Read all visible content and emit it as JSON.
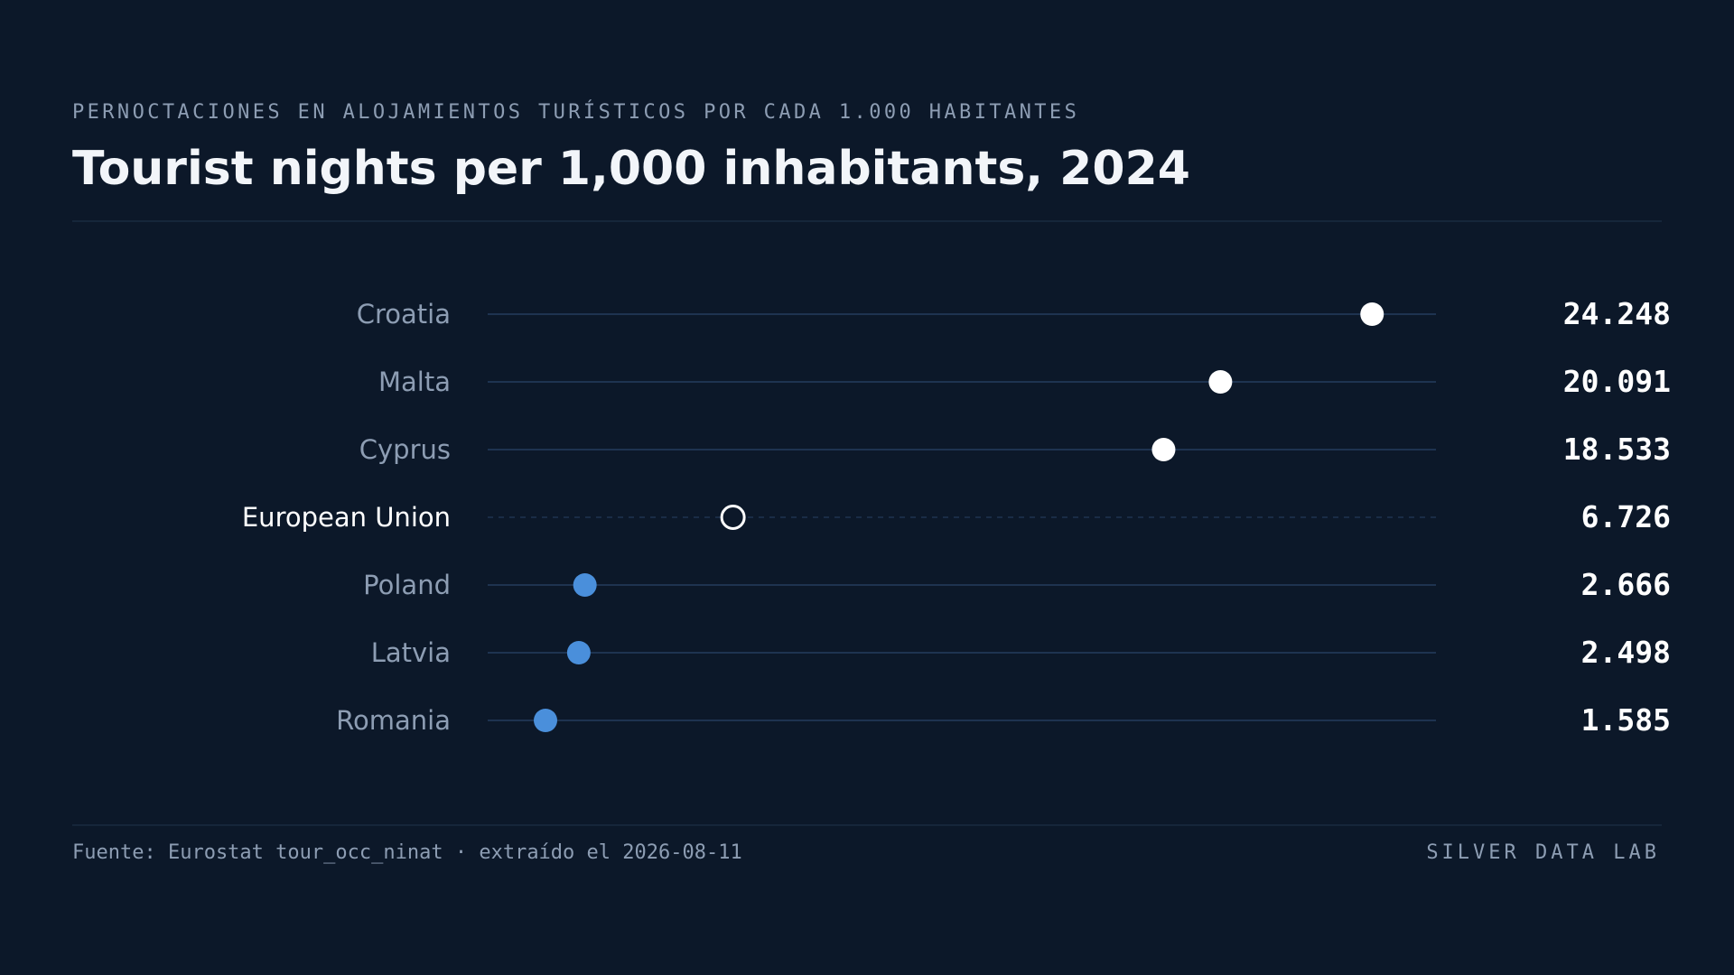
{
  "header": {
    "kicker": "PERNOCTACIONES EN ALOJAMIENTOS TURÍSTICOS POR CADA 1.000 HABITANTES",
    "title": "Tourist nights per 1,000 inhabitants, 2024"
  },
  "footer": {
    "source": "Fuente: Eurostat tour_occ_ninat · extraído el 2026-08-11",
    "brand": "SILVER DATA LAB"
  },
  "colors": {
    "background": "#0c1829",
    "top_group": "#ffffff",
    "bottom_group": "#4a8fdb",
    "reference": "#ffffff",
    "row_line": "#1e3350",
    "label": "#8d9db3",
    "reference_label": "#ffffff",
    "value": "#ffffff",
    "divider": "#1a2a40"
  },
  "chart_data": {
    "type": "scatter",
    "orientation": "horizontal-dot",
    "grid": false,
    "legend": "none",
    "xlim": [
      0,
      26000
    ],
    "rows": [
      {
        "name": "Croatia",
        "value": 24248,
        "label": "24.248",
        "group": "top"
      },
      {
        "name": "Malta",
        "value": 20091,
        "label": "20.091",
        "group": "top"
      },
      {
        "name": "Cyprus",
        "value": 18533,
        "label": "18.533",
        "group": "top"
      },
      {
        "name": "European Union",
        "value": 6726,
        "label": "6.726",
        "group": "reference"
      },
      {
        "name": "Poland",
        "value": 2666,
        "label": "2.666",
        "group": "bottom"
      },
      {
        "name": "Latvia",
        "value": 2498,
        "label": "2.498",
        "group": "bottom"
      },
      {
        "name": "Romania",
        "value": 1585,
        "label": "1.585",
        "group": "bottom"
      }
    ]
  }
}
